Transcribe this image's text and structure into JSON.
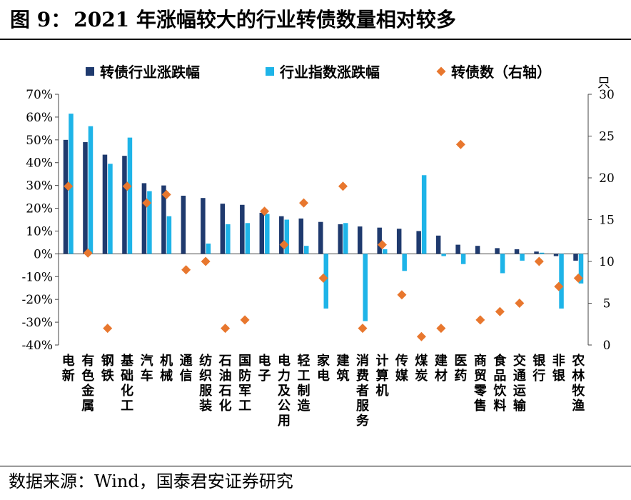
{
  "figure": {
    "label": "图 9：",
    "title": "2021 年涨幅较大的行业转债数量相对较多"
  },
  "source": {
    "label": "数据来源：",
    "text": "Wind，国泰君安证券研究"
  },
  "colors": {
    "bond_industry": "#1f3a6e",
    "industry_index": "#1eb4e8",
    "bond_count": "#e8772e"
  },
  "chart_data": {
    "type": "bar",
    "title": "",
    "categories": [
      "电新",
      "有色金属",
      "钢铁",
      "基础化工",
      "汽车",
      "机械",
      "通信",
      "纺织服装",
      "石油石化",
      "国防军工",
      "电子",
      "电力及公用",
      "轻工制造",
      "家电",
      "建筑",
      "消费者服务",
      "计算机",
      "传媒",
      "煤炭",
      "建材",
      "医药",
      "商贸零售",
      "食品饮料",
      "交通运输",
      "银行",
      "非银",
      "农林牧渔"
    ],
    "series": [
      {
        "name": "转债行业涨跌幅",
        "kind": "bar",
        "axis": "left",
        "color": "#1f3a6e",
        "values": [
          50.0,
          49.0,
          43.5,
          43.0,
          31.0,
          30.0,
          25.5,
          24.5,
          22.0,
          21.5,
          18.0,
          16.5,
          15.5,
          14.0,
          13.0,
          12.0,
          11.5,
          11.0,
          10.0,
          8.0,
          4.0,
          3.5,
          2.5,
          2.0,
          1.0,
          -1.0,
          -3.0
        ]
      },
      {
        "name": "行业指数涨跌幅",
        "kind": "bar",
        "axis": "left",
        "color": "#1eb4e8",
        "values": [
          61.5,
          56.0,
          39.5,
          51.0,
          27.5,
          16.5,
          0.0,
          4.5,
          13.0,
          13.5,
          17.5,
          15.0,
          3.5,
          -24.0,
          13.5,
          -29.5,
          2.0,
          -7.5,
          34.5,
          -1.0,
          -4.5,
          0.0,
          -8.5,
          -3.0,
          0.5,
          -24.0,
          -13.0
        ]
      },
      {
        "name": "转债数（右轴）",
        "kind": "scatter",
        "axis": "right",
        "color": "#e8772e",
        "values": [
          19,
          11,
          2,
          19,
          17,
          18,
          9,
          10,
          2,
          3,
          16,
          12,
          17,
          8,
          19,
          2,
          12,
          6,
          1,
          2,
          24,
          3,
          4,
          5,
          10,
          7,
          8
        ]
      }
    ],
    "y_left": {
      "ylim": [
        -40,
        70
      ],
      "ticks": [
        "-40%",
        "-30%",
        "-20%",
        "-10%",
        "0%",
        "10%",
        "20%",
        "30%",
        "40%",
        "50%",
        "60%",
        "70%"
      ]
    },
    "y_right": {
      "ylim": [
        0,
        30
      ],
      "unit": "只",
      "ticks": [
        "0",
        "5",
        "10",
        "15",
        "20",
        "25",
        "30"
      ]
    },
    "legend": {
      "position": "top",
      "entries": [
        "转债行业涨跌幅",
        "行业指数涨跌幅",
        "转债数（右轴）"
      ]
    },
    "grid": false
  }
}
